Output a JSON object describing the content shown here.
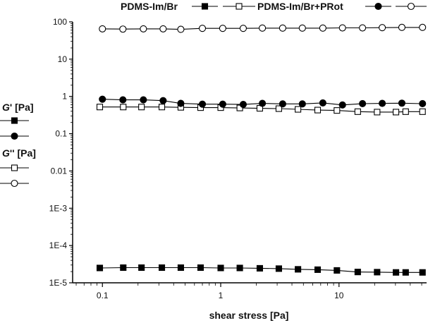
{
  "chart_data": {
    "type": "scatter",
    "title": "",
    "xlabel": "shear stress [Pa]",
    "ylabel_groups": [
      {
        "label_italic": "G",
        "label_rest": "' [Pa]",
        "series_refs": [
          0,
          2
        ]
      },
      {
        "label_italic": "G",
        "label_rest": "'' [Pa]",
        "series_refs": [
          1,
          3
        ]
      }
    ],
    "xscale": "log",
    "yscale": "log",
    "xlim": [
      0.056,
      55
    ],
    "ylim": [
      1e-05,
      100
    ],
    "xticks": [
      {
        "v": 0.1,
        "label": "0.1"
      },
      {
        "v": 1,
        "label": "1"
      },
      {
        "v": 10,
        "label": "10"
      }
    ],
    "yticks": [
      {
        "v": 100,
        "label": "100"
      },
      {
        "v": 10,
        "label": "10"
      },
      {
        "v": 1,
        "label": "1"
      },
      {
        "v": 0.1,
        "label": "0.1"
      },
      {
        "v": 0.01,
        "label": "0.01"
      },
      {
        "v": 0.001,
        "label": "1E-3"
      },
      {
        "v": 0.0001,
        "label": "1E-4"
      },
      {
        "v": 1e-05,
        "label": "1E-5"
      }
    ],
    "grid": false,
    "legend_groups": [
      {
        "name": "PDMS-Im/Br",
        "series_refs": [
          0,
          1
        ]
      },
      {
        "name": "PDMS-Im/Br+PRot",
        "series_refs": [
          2,
          3
        ]
      }
    ],
    "series": [
      {
        "name": "PDMS-Im/Br G'",
        "marker": "square-filled",
        "x": [
          0.095,
          0.15,
          0.214,
          0.318,
          0.46,
          0.676,
          1,
          1.45,
          2.14,
          3.1,
          4.5,
          6.6,
          9.6,
          14.4,
          21,
          30.3,
          36.6,
          50.8
        ],
        "y": [
          2.5e-05,
          2.55e-05,
          2.55e-05,
          2.55e-05,
          2.55e-05,
          2.55e-05,
          2.5e-05,
          2.5e-05,
          2.45e-05,
          2.4e-05,
          2.3e-05,
          2.25e-05,
          2.15e-05,
          1.95e-05,
          1.93e-05,
          1.9e-05,
          1.9e-05,
          1.9e-05
        ]
      },
      {
        "name": "PDMS-Im/Br G''",
        "marker": "square-open",
        "x": [
          0.095,
          0.15,
          0.214,
          0.318,
          0.46,
          0.676,
          1,
          1.45,
          2.14,
          3.1,
          4.5,
          6.6,
          9.6,
          14.4,
          21,
          30.3,
          36.6,
          50.8
        ],
        "y": [
          0.52,
          0.52,
          0.52,
          0.52,
          0.51,
          0.5,
          0.5,
          0.49,
          0.48,
          0.47,
          0.45,
          0.43,
          0.42,
          0.39,
          0.38,
          0.38,
          0.39,
          0.39
        ]
      },
      {
        "name": "PDMS-Im/Br+PRot G'",
        "marker": "circle-filled",
        "x": [
          0.1,
          0.149,
          0.222,
          0.326,
          0.46,
          0.7,
          1.04,
          1.55,
          2.25,
          3.34,
          4.9,
          7.3,
          10.7,
          15.8,
          23.2,
          34,
          50.8
        ],
        "y": [
          0.84,
          0.81,
          0.81,
          0.77,
          0.65,
          0.62,
          0.62,
          0.61,
          0.65,
          0.63,
          0.63,
          0.67,
          0.59,
          0.64,
          0.65,
          0.66,
          0.64
        ]
      },
      {
        "name": "PDMS-Im/Br+PRot G''",
        "marker": "circle-open",
        "x": [
          0.1,
          0.149,
          0.222,
          0.326,
          0.46,
          0.7,
          1.04,
          1.55,
          2.25,
          3.34,
          4.9,
          7.3,
          10.7,
          15.8,
          23.2,
          34,
          50.8
        ],
        "y": [
          65,
          64,
          65,
          65,
          63,
          67,
          67,
          67,
          68,
          68,
          68,
          68,
          69,
          69,
          70,
          71,
          71
        ]
      }
    ],
    "colors": {
      "ink": "#000000",
      "background": "#ffffff"
    }
  }
}
